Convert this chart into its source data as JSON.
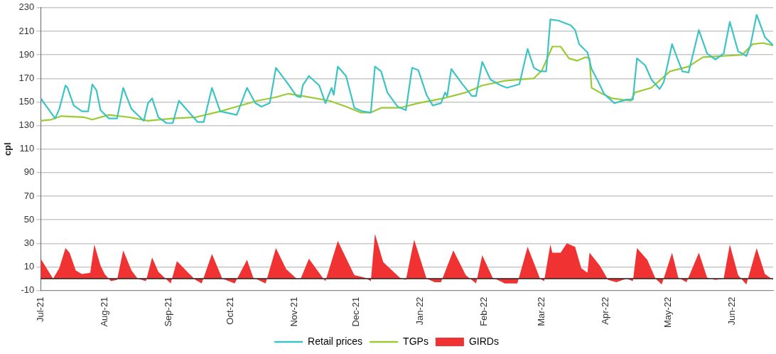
{
  "chart_data": {
    "type": "line",
    "ylabel": "cpl",
    "ylim": [
      -10,
      230
    ],
    "yticks": [
      -10,
      10,
      30,
      50,
      70,
      90,
      110,
      130,
      150,
      170,
      190,
      210,
      230
    ],
    "xlim": [
      "2021-07-01",
      "2022-06-21"
    ],
    "xticks": [
      {
        "value": "2021-07-01",
        "label": "Jul-21"
      },
      {
        "value": "2021-08-01",
        "label": "Aug-21"
      },
      {
        "value": "2021-09-01",
        "label": "Sep-21"
      },
      {
        "value": "2021-10-01",
        "label": "Oct-21"
      },
      {
        "value": "2021-11-01",
        "label": "Nov-21"
      },
      {
        "value": "2021-12-01",
        "label": "Dec-21"
      },
      {
        "value": "2022-01-01",
        "label": "Jan-22"
      },
      {
        "value": "2022-02-01",
        "label": "Feb-22"
      },
      {
        "value": "2022-03-01",
        "label": "Mar-22"
      },
      {
        "value": "2022-04-01",
        "label": "Apr-22"
      },
      {
        "value": "2022-05-01",
        "label": "May-22"
      },
      {
        "value": "2022-06-01",
        "label": "Jun-22"
      }
    ],
    "grid": "y",
    "legend": "bottom",
    "marker": "none",
    "ref_lines": [
      {
        "axis": "y",
        "value": 0,
        "color": "#222222"
      }
    ],
    "series": [
      {
        "name": "Retail prices",
        "type": "line",
        "color": "#3cc3c6",
        "x": [
          "2021-07-01",
          "2021-07-08",
          "2021-07-10",
          "2021-07-13",
          "2021-07-14",
          "2021-07-17",
          "2021-07-21",
          "2021-07-24",
          "2021-07-26",
          "2021-07-28",
          "2021-07-30",
          "2021-08-03",
          "2021-08-07",
          "2021-08-10",
          "2021-08-14",
          "2021-08-20",
          "2021-08-22",
          "2021-08-24",
          "2021-08-27",
          "2021-08-31",
          "2021-09-03",
          "2021-09-06",
          "2021-09-10",
          "2021-09-15",
          "2021-09-18",
          "2021-09-22",
          "2021-09-26",
          "2021-10-04",
          "2021-10-09",
          "2021-10-13",
          "2021-10-16",
          "2021-10-20",
          "2021-10-23",
          "2021-10-26",
          "2021-10-29",
          "2021-11-02",
          "2021-11-04",
          "2021-11-05",
          "2021-11-08",
          "2021-11-13",
          "2021-11-16",
          "2021-11-19",
          "2021-11-20",
          "2021-11-22",
          "2021-11-26",
          "2021-11-30",
          "2021-12-04",
          "2021-12-08",
          "2021-12-10",
          "2021-12-13",
          "2021-12-16",
          "2021-12-21",
          "2021-12-25",
          "2021-12-28",
          "2021-12-31",
          "2022-01-04",
          "2022-01-07",
          "2022-01-11",
          "2022-01-13",
          "2022-01-14",
          "2022-01-16",
          "2022-01-21",
          "2022-01-26",
          "2022-01-28",
          "2022-01-31",
          "2022-02-04",
          "2022-02-09",
          "2022-02-12",
          "2022-02-18",
          "2022-02-22",
          "2022-02-25",
          "2022-02-28",
          "2022-03-03",
          "2022-03-05",
          "2022-03-09",
          "2022-03-15",
          "2022-03-17",
          "2022-03-19",
          "2022-03-23",
          "2022-03-25",
          "2022-03-28",
          "2022-03-31",
          "2022-04-05",
          "2022-04-11",
          "2022-04-14",
          "2022-04-16",
          "2022-04-20",
          "2022-04-23",
          "2022-04-27",
          "2022-04-29",
          "2022-05-03",
          "2022-05-06",
          "2022-05-08",
          "2022-05-11",
          "2022-05-16",
          "2022-05-20",
          "2022-05-24",
          "2022-05-28",
          "2022-05-31",
          "2022-06-04",
          "2022-06-08",
          "2022-06-10",
          "2022-06-13",
          "2022-06-17",
          "2022-06-21"
        ],
        "values": [
          153,
          136,
          144,
          164,
          162,
          147,
          142,
          142,
          165,
          160,
          143,
          136,
          136,
          162,
          144,
          134,
          149,
          153,
          137,
          132,
          132,
          151,
          143,
          133,
          133,
          162,
          142,
          139,
          162,
          149,
          146,
          149,
          179,
          172,
          165,
          155,
          154,
          164,
          172,
          164,
          149,
          162,
          156,
          180,
          172,
          145,
          142,
          141,
          180,
          176,
          158,
          146,
          143,
          179,
          177,
          156,
          147,
          149,
          158,
          155,
          178,
          166,
          155,
          155,
          184,
          169,
          164,
          162,
          165,
          195,
          179,
          176,
          176,
          220,
          219,
          215,
          211,
          199,
          192,
          178,
          168,
          157,
          149,
          152,
          152,
          187,
          181,
          169,
          161,
          167,
          199,
          185,
          176,
          175,
          211,
          191,
          186,
          191,
          218,
          193,
          189,
          198,
          224,
          205,
          198
        ]
      },
      {
        "name": "TGPs",
        "type": "line",
        "color": "#9acb34",
        "x": [
          "2021-07-01",
          "2021-07-06",
          "2021-07-11",
          "2021-07-22",
          "2021-07-26",
          "2021-08-03",
          "2021-08-13",
          "2021-08-22",
          "2021-09-03",
          "2021-09-14",
          "2021-09-26",
          "2021-10-04",
          "2021-10-14",
          "2021-10-23",
          "2021-10-29",
          "2021-11-05",
          "2021-11-18",
          "2021-11-26",
          "2021-12-03",
          "2021-12-08",
          "2021-12-13",
          "2021-12-22",
          "2021-12-31",
          "2022-01-12",
          "2022-01-23",
          "2022-01-31",
          "2022-02-11",
          "2022-02-18",
          "2022-02-25",
          "2022-03-01",
          "2022-03-06",
          "2022-03-10",
          "2022-03-14",
          "2022-03-18",
          "2022-03-22",
          "2022-03-24",
          "2022-03-25",
          "2022-03-29",
          "2022-04-04",
          "2022-04-13",
          "2022-04-15",
          "2022-04-23",
          "2022-05-02",
          "2022-05-11",
          "2022-05-18",
          "2022-05-28",
          "2022-06-06",
          "2022-06-11",
          "2022-06-16",
          "2022-06-21"
        ],
        "values": [
          134,
          135,
          138,
          137,
          135,
          139,
          137,
          134,
          136,
          137,
          142,
          146,
          151,
          154,
          157,
          155,
          151,
          146,
          141,
          141,
          145,
          145,
          149,
          153,
          158,
          164,
          168,
          169,
          170,
          177,
          197,
          197,
          187,
          185,
          188,
          187,
          162,
          158,
          153,
          151,
          158,
          162,
          176,
          180,
          188,
          189,
          190,
          199,
          200,
          198
        ]
      },
      {
        "name": "GIRDs",
        "type": "area",
        "color": "#f03232",
        "x": [
          "2021-07-01",
          "2021-07-07",
          "2021-07-10",
          "2021-07-13",
          "2021-07-15",
          "2021-07-18",
          "2021-07-21",
          "2021-07-25",
          "2021-07-27",
          "2021-07-30",
          "2021-08-01",
          "2021-08-04",
          "2021-08-07",
          "2021-08-10",
          "2021-08-14",
          "2021-08-17",
          "2021-08-21",
          "2021-08-24",
          "2021-08-27",
          "2021-09-02",
          "2021-09-05",
          "2021-09-10",
          "2021-09-14",
          "2021-09-17",
          "2021-09-22",
          "2021-09-27",
          "2021-10-03",
          "2021-10-09",
          "2021-10-12",
          "2021-10-18",
          "2021-10-23",
          "2021-10-28",
          "2021-11-02",
          "2021-11-04",
          "2021-11-08",
          "2021-11-15",
          "2021-11-16",
          "2021-11-22",
          "2021-11-30",
          "2021-12-05",
          "2021-12-08",
          "2021-12-10",
          "2021-12-14",
          "2021-12-22",
          "2021-12-25",
          "2021-12-29",
          "2022-01-04",
          "2022-01-08",
          "2022-01-11",
          "2022-01-13",
          "2022-01-17",
          "2022-01-23",
          "2022-01-28",
          "2022-01-31",
          "2022-02-05",
          "2022-02-11",
          "2022-02-17",
          "2022-02-22",
          "2022-02-28",
          "2022-03-02",
          "2022-03-05",
          "2022-03-06",
          "2022-03-10",
          "2022-03-13",
          "2022-03-17",
          "2022-03-20",
          "2022-03-23",
          "2022-03-24",
          "2022-03-29",
          "2022-04-02",
          "2022-04-06",
          "2022-04-11",
          "2022-04-14",
          "2022-04-16",
          "2022-04-21",
          "2022-04-25",
          "2022-04-28",
          "2022-05-03",
          "2022-05-06",
          "2022-05-10",
          "2022-05-16",
          "2022-05-20",
          "2022-05-24",
          "2022-05-28",
          "2022-05-31",
          "2022-06-04",
          "2022-06-08",
          "2022-06-13",
          "2022-06-17",
          "2022-06-21"
        ],
        "values": [
          17,
          0,
          9,
          26,
          22,
          7,
          4,
          5,
          29,
          11,
          4,
          -2,
          -1,
          24,
          7,
          0,
          -2,
          18,
          6,
          -4,
          15,
          6,
          -1,
          -4,
          21,
          0,
          -4,
          16,
          1,
          -4,
          26,
          8,
          0,
          0,
          17,
          0,
          -2,
          32,
          3,
          1,
          -2,
          38,
          14,
          1,
          -1,
          33,
          0,
          -3,
          -3,
          6,
          24,
          3,
          -4,
          20,
          1,
          -4,
          -4,
          27,
          0,
          -2,
          29,
          22,
          22,
          30,
          27,
          9,
          5,
          22,
          11,
          -1,
          -3,
          0,
          -2,
          26,
          16,
          0,
          -5,
          22,
          1,
          -3,
          22,
          1,
          -1,
          0,
          29,
          3,
          -5,
          26,
          4,
          -1
        ]
      }
    ]
  }
}
